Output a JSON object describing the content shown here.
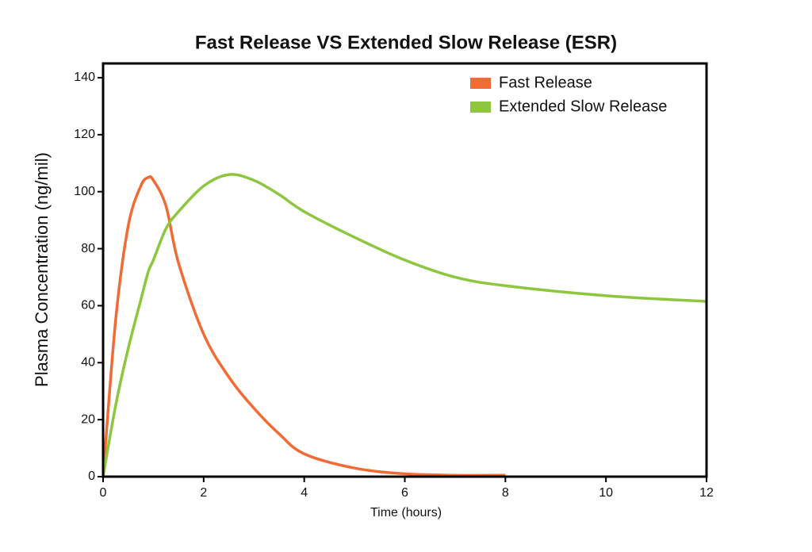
{
  "chart_data": {
    "type": "line",
    "title": "Fast Release VS Extended Slow Release (ESR)",
    "x_label": "Time (hours)",
    "y_label": "Plasma Concentration (ng/mil)",
    "x": [
      0,
      0.25,
      0.5,
      0.75,
      0.9,
      1,
      1.25,
      1.5,
      2,
      2.5,
      3,
      3.5,
      4,
      5,
      6,
      7,
      8,
      10,
      12
    ],
    "series": [
      {
        "name": "Fast Release",
        "color": "#f26b35",
        "values": [
          0,
          55,
          88,
          102,
          105,
          104,
          95,
          75,
          50,
          35,
          24,
          15,
          8,
          3,
          1,
          0.5,
          0.5,
          null,
          null
        ]
      },
      {
        "name": "Extended Slow Release",
        "color": "#8dc63f",
        "values": [
          0,
          25,
          45,
          62,
          72,
          76,
          87,
          93,
          102,
          106,
          104,
          99,
          93,
          84,
          76,
          70,
          67,
          63.5,
          61.5
        ]
      }
    ],
    "xlim": [
      0,
      12
    ],
    "xticks": [
      0,
      2,
      4,
      6,
      8,
      10,
      12
    ],
    "ylim": [
      0,
      145
    ],
    "yticks": [
      0,
      20,
      40,
      60,
      80,
      100,
      120,
      140
    ],
    "legend": "upper right",
    "grid": false
  }
}
